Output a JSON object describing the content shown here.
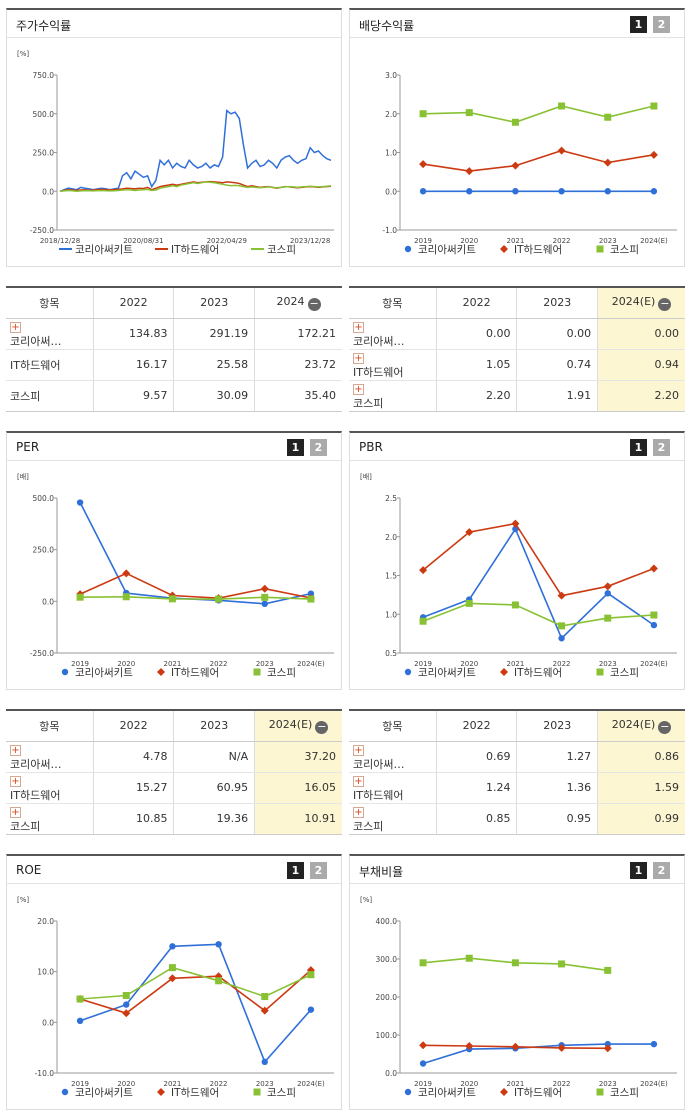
{
  "colors": {
    "company": "#2f6fd8",
    "industry": "#cc3a12",
    "market": "#88c234"
  },
  "legend": [
    "코리아써키트",
    "IT하드웨어",
    "코스피"
  ],
  "buttons": {
    "b1": "1",
    "b2": "2"
  },
  "tables": [
    {
      "headers": [
        "항목",
        "2022",
        "2023",
        "2024"
      ],
      "header_icon": "minus-icon",
      "highlight_last": false,
      "rows": [
        {
          "name": "코리아써…",
          "plus": true,
          "values": [
            "134.83",
            "291.19",
            "172.21"
          ]
        },
        {
          "name": "IT하드웨어",
          "plus": false,
          "values": [
            "16.17",
            "25.58",
            "23.72"
          ]
        },
        {
          "name": "코스피",
          "plus": false,
          "values": [
            "9.57",
            "30.09",
            "35.40"
          ]
        }
      ]
    },
    {
      "headers": [
        "항목",
        "2022",
        "2023",
        "2024(E)"
      ],
      "header_icon": "minus-icon",
      "highlight_last": true,
      "rows": [
        {
          "name": "코리아써…",
          "plus": true,
          "values": [
            "0.00",
            "0.00",
            "0.00"
          ]
        },
        {
          "name": "IT하드웨어",
          "plus": true,
          "values": [
            "1.05",
            "0.74",
            "0.94"
          ]
        },
        {
          "name": "코스피",
          "plus": true,
          "values": [
            "2.20",
            "1.91",
            "2.20"
          ]
        }
      ]
    },
    {
      "headers": [
        "항목",
        "2022",
        "2023",
        "2024(E)"
      ],
      "header_icon": "minus-icon",
      "highlight_last": true,
      "rows": [
        {
          "name": "코리아써…",
          "plus": true,
          "values": [
            "4.78",
            "N/A",
            "37.20"
          ]
        },
        {
          "name": "IT하드웨어",
          "plus": true,
          "values": [
            "15.27",
            "60.95",
            "16.05"
          ]
        },
        {
          "name": "코스피",
          "plus": true,
          "values": [
            "10.85",
            "19.36",
            "10.91"
          ]
        }
      ]
    },
    {
      "headers": [
        "항목",
        "2022",
        "2023",
        "2024(E)"
      ],
      "header_icon": "minus-icon",
      "highlight_last": true,
      "rows": [
        {
          "name": "코리아써…",
          "plus": true,
          "values": [
            "0.69",
            "1.27",
            "0.86"
          ]
        },
        {
          "name": "IT하드웨어",
          "plus": true,
          "values": [
            "1.24",
            "1.36",
            "1.59"
          ]
        },
        {
          "name": "코스피",
          "plus": true,
          "values": [
            "0.85",
            "0.95",
            "0.99"
          ]
        }
      ]
    }
  ],
  "chart_data": [
    {
      "title": "주가수익률",
      "type": "line",
      "unit": "[%]",
      "buttons": false,
      "ylim": [
        -250,
        750
      ],
      "yticks": [
        "750.0",
        "500.0",
        "250.0",
        "0.0",
        "-250.0"
      ],
      "x_tick_labels": [
        "2018/12/28",
        "2020/08/31",
        "2022/04/29",
        "2023/12/28"
      ],
      "x_tick_positions": [
        0,
        20,
        40,
        60
      ],
      "n_points": 66,
      "series": [
        {
          "name": "코리아써키트",
          "values": [
            0,
            10,
            20,
            15,
            10,
            25,
            20,
            15,
            10,
            15,
            20,
            15,
            10,
            15,
            20,
            100,
            120,
            80,
            130,
            110,
            90,
            100,
            30,
            70,
            200,
            170,
            200,
            150,
            180,
            160,
            150,
            200,
            170,
            150,
            160,
            180,
            150,
            170,
            160,
            220,
            520,
            500,
            510,
            470,
            300,
            150,
            180,
            200,
            160,
            170,
            200,
            180,
            150,
            200,
            220,
            230,
            200,
            180,
            200,
            210,
            280,
            250,
            260,
            230,
            210,
            200
          ]
        },
        {
          "name": "IT하드웨어",
          "values": [
            0,
            5,
            10,
            8,
            5,
            8,
            10,
            5,
            8,
            10,
            12,
            10,
            8,
            10,
            12,
            15,
            20,
            18,
            15,
            20,
            18,
            25,
            10,
            20,
            30,
            35,
            40,
            45,
            40,
            45,
            50,
            55,
            60,
            55,
            58,
            60,
            62,
            60,
            58,
            55,
            60,
            58,
            55,
            50,
            40,
            30,
            35,
            30,
            25,
            28,
            30,
            25,
            20,
            25,
            30,
            28,
            25,
            22,
            25,
            28,
            30,
            28,
            25,
            28,
            30,
            32
          ]
        },
        {
          "name": "코스피",
          "values": [
            0,
            2,
            5,
            3,
            0,
            2,
            4,
            3,
            2,
            4,
            5,
            3,
            2,
            3,
            5,
            8,
            10,
            8,
            5,
            8,
            10,
            12,
            5,
            8,
            20,
            25,
            30,
            35,
            30,
            40,
            45,
            50,
            55,
            50,
            55,
            60,
            58,
            55,
            50,
            45,
            40,
            35,
            38,
            35,
            30,
            25,
            28,
            25,
            22,
            25,
            28,
            25,
            22,
            25,
            28,
            30,
            28,
            25,
            28,
            30,
            32,
            30,
            28,
            30,
            32,
            35
          ]
        }
      ]
    },
    {
      "title": "배당수익률",
      "type": "line",
      "unit": "",
      "buttons": true,
      "ylim": [
        -1,
        3
      ],
      "yticks": [
        "3.0",
        "2.0",
        "1.0",
        "0.0",
        "-1.0"
      ],
      "categories": [
        "2019",
        "2020",
        "2021",
        "2022",
        "2023",
        "2024(E)"
      ],
      "series": [
        {
          "name": "코리아써키트",
          "values": [
            0,
            0,
            0,
            0,
            0,
            0
          ]
        },
        {
          "name": "IT하드웨어",
          "values": [
            0.7,
            0.52,
            0.66,
            1.05,
            0.74,
            0.94
          ]
        },
        {
          "name": "코스피",
          "values": [
            2.0,
            2.03,
            1.78,
            2.2,
            1.91,
            2.2
          ]
        }
      ]
    },
    {
      "title": "PER",
      "type": "line",
      "unit": "[배]",
      "buttons": true,
      "ylim": [
        -250,
        500
      ],
      "yticks": [
        "500.0",
        "250.0",
        "0.0",
        "-250.0"
      ],
      "categories": [
        "2019",
        "2020",
        "2021",
        "2022",
        "2023",
        "2024(E)"
      ],
      "series": [
        {
          "name": "코리아써키트",
          "values": [
            478,
            40,
            15,
            4.78,
            -12,
            37.2
          ]
        },
        {
          "name": "IT하드웨어",
          "values": [
            35,
            135,
            28,
            15.27,
            60.95,
            16.05
          ]
        },
        {
          "name": "코스피",
          "values": [
            20,
            22,
            12,
            10.85,
            19.36,
            10.91
          ]
        }
      ]
    },
    {
      "title": "PBR",
      "type": "line",
      "unit": "[배]",
      "buttons": true,
      "ylim": [
        0.5,
        2.5
      ],
      "yticks": [
        "2.5",
        "2.0",
        "1.5",
        "1.0",
        "0.5"
      ],
      "categories": [
        "2019",
        "2020",
        "2021",
        "2022",
        "2023",
        "2024(E)"
      ],
      "series": [
        {
          "name": "코리아써키트",
          "values": [
            0.96,
            1.19,
            2.1,
            0.69,
            1.27,
            0.86
          ]
        },
        {
          "name": "IT하드웨어",
          "values": [
            1.57,
            2.06,
            2.17,
            1.24,
            1.36,
            1.59
          ]
        },
        {
          "name": "코스피",
          "values": [
            0.91,
            1.14,
            1.12,
            0.85,
            0.95,
            0.99
          ]
        }
      ]
    },
    {
      "title": "ROE",
      "type": "line",
      "unit": "[%]",
      "buttons": true,
      "ylim": [
        -10,
        20
      ],
      "yticks": [
        "20.0",
        "10.0",
        "0.0",
        "-10.0"
      ],
      "categories": [
        "2019",
        "2020",
        "2021",
        "2022",
        "2023",
        "2024(E)"
      ],
      "series": [
        {
          "name": "코리아써키트",
          "values": [
            0.3,
            3.5,
            15.0,
            15.4,
            -7.8,
            2.5
          ]
        },
        {
          "name": "IT하드웨어",
          "values": [
            4.6,
            1.8,
            8.7,
            9.1,
            2.3,
            10.3
          ]
        },
        {
          "name": "코스피",
          "values": [
            4.6,
            5.3,
            10.8,
            8.2,
            5.1,
            9.4
          ]
        }
      ]
    },
    {
      "title": "부채비율",
      "type": "line",
      "unit": "[%]",
      "buttons": true,
      "ylim": [
        0,
        400
      ],
      "yticks": [
        "400.0",
        "300.0",
        "200.0",
        "100.0",
        "0.0"
      ],
      "categories": [
        "2019",
        "2020",
        "2021",
        "2022",
        "2023",
        "2024(E)"
      ],
      "series": [
        {
          "name": "코리아써키트",
          "values": [
            25,
            63,
            65,
            73,
            76,
            76
          ]
        },
        {
          "name": "IT하드웨어",
          "values": [
            73,
            71,
            69,
            66,
            65,
            null
          ]
        },
        {
          "name": "코스피",
          "values": [
            290,
            302,
            290,
            287,
            270,
            null
          ]
        }
      ]
    }
  ]
}
